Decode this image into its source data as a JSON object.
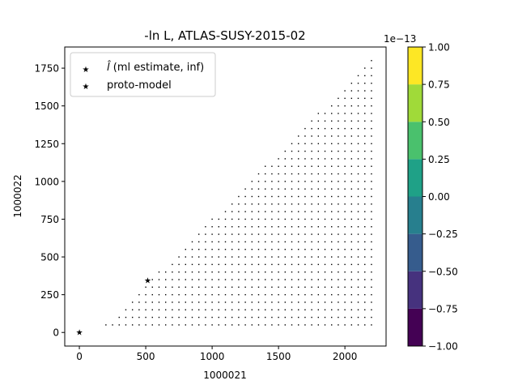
{
  "chart_data": {
    "type": "scatter",
    "title": "-ln L, ATLAS-SUSY-2015-02",
    "xlabel": "1000021",
    "ylabel": "1000022",
    "xlim": [
      -110,
      2310
    ],
    "ylim": [
      -90,
      1890
    ],
    "xticks": [
      "0",
      "500",
      "1000",
      "1500",
      "2000"
    ],
    "xtick_values": [
      0,
      500,
      1000,
      1500,
      2000
    ],
    "yticks": [
      "0",
      "250",
      "500",
      "750",
      "1000",
      "1250",
      "1500",
      "1750"
    ],
    "ytick_values": [
      0,
      250,
      500,
      750,
      1000,
      1250,
      1500,
      1750
    ],
    "grid": {
      "x_start": 200,
      "x_end": 2200,
      "x_step": 50,
      "y_start": 50,
      "y_end": 1800,
      "y_step": 50,
      "boundary_note": "points shown where y <= 0.875*x - 125",
      "color": "#000000"
    },
    "series": [
      {
        "name": "̂l (ml estimate, inf)",
        "marker": "star",
        "color": "#ff0000",
        "points": [
          [
            0,
            0
          ]
        ]
      },
      {
        "name": "proto-model",
        "marker": "star",
        "color": "#000000",
        "points": [
          [
            515,
            345
          ]
        ]
      }
    ],
    "legend": {
      "position": "top-left",
      "entries": [
        {
          "prefix": "l̂",
          "label": " (ml estimate, inf)",
          "color": "#ff0000"
        },
        {
          "prefix": "",
          "label": "proto-model",
          "color": "#000000"
        }
      ]
    },
    "colorbar": {
      "exponent": "1e−13",
      "ticks": [
        "−1.00",
        "−0.75",
        "−0.50",
        "−0.25",
        "0.00",
        "0.25",
        "0.50",
        "0.75",
        "1.00"
      ],
      "tick_values": [
        -1.0,
        -0.75,
        -0.5,
        -0.25,
        0.0,
        0.25,
        0.5,
        0.75,
        1.0
      ],
      "colors": [
        "#440154",
        "#46327e",
        "#365c8d",
        "#277f8e",
        "#1fa187",
        "#4ac16d",
        "#a0da39",
        "#fde725"
      ]
    }
  }
}
